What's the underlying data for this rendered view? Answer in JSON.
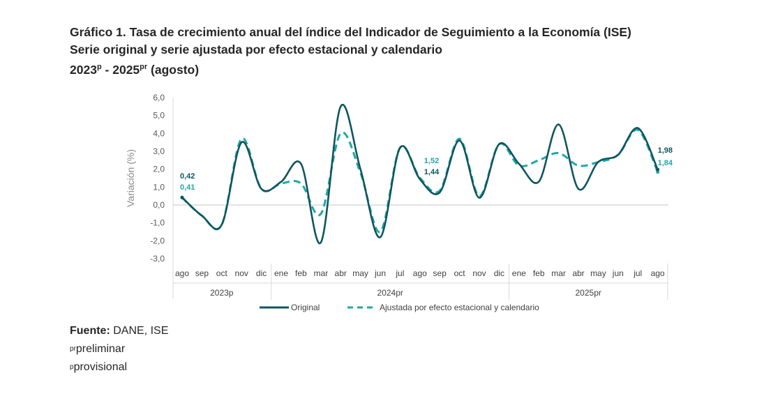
{
  "title": {
    "line1": "Gráfico 1. Tasa de crecimiento anual del índice del Indicador de Seguimiento a la Economía (ISE)",
    "line2": "Serie original y serie ajustada por efecto estacional y calendario",
    "line3_a": "2023",
    "line3_sup_a": "p",
    "line3_b": " - 2025",
    "line3_sup_b": "pr",
    "line3_c": " (agosto)"
  },
  "source": {
    "label": "Fuente:",
    "value": " DANE, ISE",
    "note1_sup": "pr",
    "note1": "preliminar",
    "note2_sup": "p",
    "note2": "provisional"
  },
  "chart_data": {
    "type": "line",
    "title": "",
    "ylabel": "Variación (%)",
    "ylim": [
      -3,
      6
    ],
    "yticks": [
      "-3,0",
      "-2,0",
      "-1,0",
      "0,0",
      "1,0",
      "2,0",
      "3,0",
      "4,0",
      "5,0",
      "6,0"
    ],
    "categories": [
      "ago",
      "sep",
      "oct",
      "nov",
      "dic",
      "ene",
      "feb",
      "mar",
      "abr",
      "may",
      "jun",
      "jul",
      "ago",
      "sep",
      "oct",
      "nov",
      "dic",
      "ene",
      "feb",
      "mar",
      "abr",
      "may",
      "jun",
      "jul",
      "ago"
    ],
    "year_groups": [
      {
        "label": "2023p",
        "count": 5
      },
      {
        "label": "2024pr",
        "count": 12
      },
      {
        "label": "2025pr",
        "count": 8
      }
    ],
    "series": [
      {
        "name": "Original",
        "color": "#0e5560",
        "dash": false,
        "values": [
          0.42,
          -0.6,
          -1.1,
          3.5,
          0.9,
          1.3,
          2.3,
          -2.1,
          5.5,
          2.0,
          -1.8,
          3.2,
          1.44,
          0.7,
          3.6,
          0.4,
          3.4,
          2.3,
          1.3,
          4.5,
          0.9,
          2.4,
          2.8,
          4.3,
          1.98
        ]
      },
      {
        "name": "Ajustada por efecto estacional y calendario",
        "color": "#1fa7a5",
        "dash": true,
        "values": [
          0.41,
          -0.6,
          -1.1,
          3.7,
          0.9,
          1.2,
          1.2,
          -0.5,
          4.0,
          1.8,
          -1.5,
          3.2,
          1.52,
          0.8,
          3.7,
          0.5,
          3.4,
          2.2,
          2.5,
          2.9,
          2.2,
          2.4,
          2.8,
          4.2,
          1.84
        ]
      }
    ],
    "data_labels": [
      {
        "series": 0,
        "index": 0,
        "text": "0,42"
      },
      {
        "series": 1,
        "index": 0,
        "text": "0,41"
      },
      {
        "series": 1,
        "index": 12,
        "text": "1,52"
      },
      {
        "series": 0,
        "index": 12,
        "text": "1,44"
      },
      {
        "series": 0,
        "index": 24,
        "text": "1,98"
      },
      {
        "series": 1,
        "index": 24,
        "text": "1,84"
      }
    ],
    "legend": "bottom",
    "grid": false
  }
}
